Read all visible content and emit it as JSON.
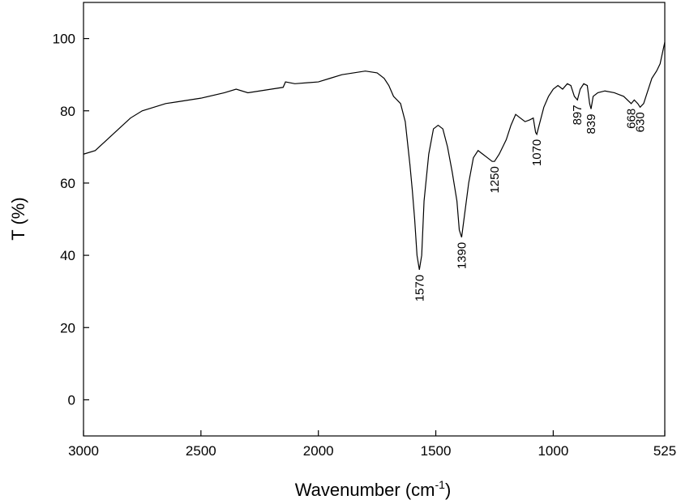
{
  "chart_data": {
    "type": "line",
    "xlabel": [
      "Wavenumber (cm",
      "-1",
      ")"
    ],
    "ylabel": "T (%)",
    "x_reversed": true,
    "xlim": [
      3000,
      525
    ],
    "ylim": [
      -10,
      110
    ],
    "xticks": [
      3000,
      2500,
      2000,
      1500,
      1000,
      525
    ],
    "yticks": [
      0,
      20,
      40,
      60,
      80,
      100
    ],
    "color": "#000000",
    "x": [
      3000,
      2950,
      2900,
      2850,
      2800,
      2750,
      2700,
      2650,
      2600,
      2500,
      2400,
      2350,
      2300,
      2250,
      2200,
      2150,
      2140,
      2100,
      2000,
      1950,
      1900,
      1850,
      1800,
      1750,
      1720,
      1700,
      1680,
      1650,
      1630,
      1610,
      1600,
      1590,
      1580,
      1570,
      1560,
      1550,
      1530,
      1510,
      1490,
      1470,
      1450,
      1430,
      1410,
      1400,
      1390,
      1380,
      1360,
      1340,
      1320,
      1300,
      1280,
      1260,
      1250,
      1230,
      1200,
      1180,
      1160,
      1140,
      1120,
      1100,
      1085,
      1075,
      1070,
      1060,
      1040,
      1020,
      1000,
      980,
      960,
      940,
      925,
      910,
      897,
      885,
      870,
      855,
      845,
      839,
      830,
      810,
      780,
      740,
      700,
      668,
      655,
      640,
      630,
      615,
      600,
      580,
      560,
      545,
      535,
      525
    ],
    "values": [
      68,
      69,
      72,
      75,
      78,
      80,
      81,
      82,
      82.5,
      83.5,
      85,
      86,
      85,
      85.5,
      86,
      86.5,
      88,
      87.5,
      88,
      89,
      90,
      90.5,
      91,
      90.5,
      89,
      87,
      84,
      82,
      77,
      65,
      58,
      50,
      40,
      36,
      40,
      55,
      68,
      75,
      76,
      75,
      70,
      63,
      55,
      47,
      45,
      50,
      60,
      67,
      69,
      68,
      67,
      66,
      66,
      68,
      72,
      76,
      79,
      78,
      77,
      77.5,
      78,
      74,
      73.5,
      76,
      81,
      84,
      86,
      87,
      86,
      87.5,
      87,
      84,
      83,
      86,
      87.5,
      87,
      82,
      80.5,
      84,
      85,
      85.5,
      85,
      84,
      82,
      83,
      82,
      81,
      82,
      85,
      89,
      91,
      93,
      96,
      99
    ],
    "annotations": [
      1570,
      1390,
      1250,
      1070,
      897,
      839,
      668,
      630
    ]
  }
}
